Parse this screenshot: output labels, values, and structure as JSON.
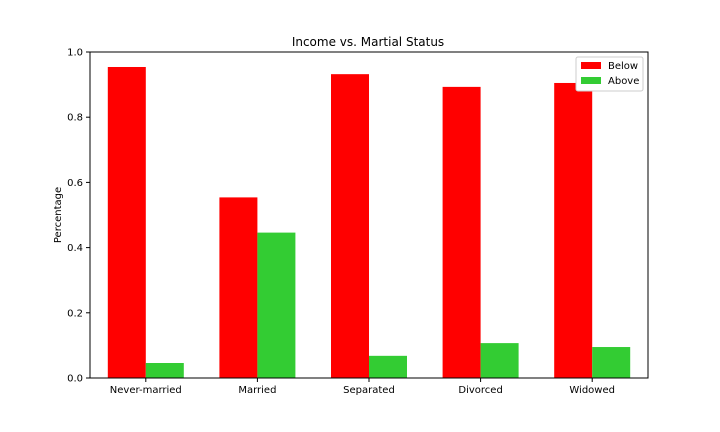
{
  "chart_data": {
    "type": "bar",
    "title": "Income vs. Martial Status",
    "xlabel": "",
    "ylabel": "Percentage",
    "categories": [
      "Never-married",
      "Married",
      "Separated",
      "Divorced",
      "Widowed"
    ],
    "series": [
      {
        "name": "Below",
        "color": "#ff0000",
        "values": [
          0.954,
          0.554,
          0.932,
          0.893,
          0.905
        ]
      },
      {
        "name": "Above",
        "color": "#33cc33",
        "values": [
          0.046,
          0.446,
          0.068,
          0.107,
          0.095
        ]
      }
    ],
    "ylim": [
      0,
      1.0
    ],
    "yticks": [
      "0.0",
      "0.2",
      "0.4",
      "0.6",
      "0.8",
      "1.0"
    ],
    "grid": false,
    "legend_position": "top-right"
  }
}
